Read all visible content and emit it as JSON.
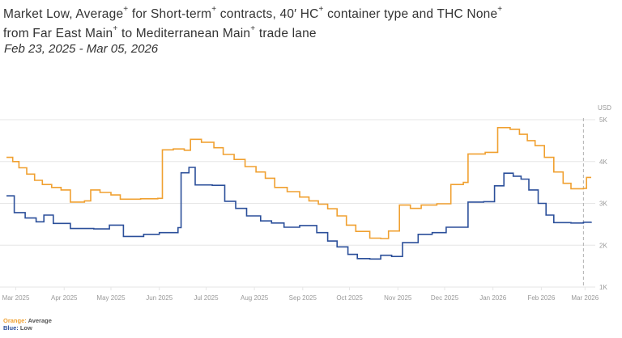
{
  "title": {
    "parts": [
      {
        "text": "Market  Low, Average",
        "sup": "+"
      },
      {
        "text": "  for  Short-term",
        "sup": "+"
      },
      {
        "text": "  contracts,  40′ HC",
        "sup": "+"
      },
      {
        "text": "  container type and THC  None",
        "sup": "+"
      }
    ],
    "line2": [
      {
        "text": "from  Far East Main",
        "sup": "+"
      },
      {
        "text": "  to  Mediterranean Main",
        "sup": "+"
      },
      {
        "text": "  trade lane",
        "sup": ""
      }
    ]
  },
  "date_range": "Feb 23, 2025 - Mar 05, 2026",
  "legend": {
    "orange_key": "Orange:",
    "orange_value": "Average",
    "blue_key": "Blue:",
    "blue_value": "Low"
  },
  "colors": {
    "average": "#f0a030",
    "low": "#2b4f9a",
    "grid": "#e6e6e6",
    "axis_text": "#999999"
  },
  "chart_data": {
    "type": "line",
    "unit_label": "USD",
    "y_ticks": [
      {
        "value": 1000,
        "label": "1K"
      },
      {
        "value": 2000,
        "label": "2K"
      },
      {
        "value": 3000,
        "label": "3K"
      },
      {
        "value": 4000,
        "label": "4K"
      },
      {
        "value": 5000,
        "label": "5K"
      }
    ],
    "ylim": [
      1000,
      5000
    ],
    "x_range": [
      "2025-02-23",
      "2026-03-05"
    ],
    "x_ticks": [
      {
        "date": "2025-03-01",
        "label": "Mar 2025"
      },
      {
        "date": "2025-04-01",
        "label": "Apr 2025"
      },
      {
        "date": "2025-05-01",
        "label": "May 2025"
      },
      {
        "date": "2025-06-01",
        "label": "Jun 2025"
      },
      {
        "date": "2025-07-01",
        "label": "Jul 2025"
      },
      {
        "date": "2025-08-01",
        "label": "Aug 2025"
      },
      {
        "date": "2025-09-01",
        "label": "Sep 2025"
      },
      {
        "date": "2025-10-01",
        "label": "Oct 2025"
      },
      {
        "date": "2025-11-01",
        "label": "Nov 2025"
      },
      {
        "date": "2025-12-01",
        "label": "Dec 2025"
      },
      {
        "date": "2026-01-01",
        "label": "Jan 2026"
      },
      {
        "date": "2026-02-01",
        "label": "Feb 2026"
      },
      {
        "date": "2026-03-01",
        "label": "Mar 2026"
      }
    ],
    "marker_date": "2026-02-28",
    "series": [
      {
        "name": "Average",
        "color_key": "average",
        "points": [
          [
            "2025-02-23",
            4100
          ],
          [
            "2025-02-27",
            4000
          ],
          [
            "2025-03-03",
            3850
          ],
          [
            "2025-03-08",
            3700
          ],
          [
            "2025-03-13",
            3550
          ],
          [
            "2025-03-18",
            3450
          ],
          [
            "2025-03-24",
            3380
          ],
          [
            "2025-03-30",
            3320
          ],
          [
            "2025-04-05",
            3030
          ],
          [
            "2025-04-14",
            3060
          ],
          [
            "2025-04-18",
            3320
          ],
          [
            "2025-04-24",
            3260
          ],
          [
            "2025-05-01",
            3200
          ],
          [
            "2025-05-07",
            3100
          ],
          [
            "2025-05-20",
            3110
          ],
          [
            "2025-05-31",
            3120
          ],
          [
            "2025-06-03",
            4280
          ],
          [
            "2025-06-10",
            4300
          ],
          [
            "2025-06-17",
            4270
          ],
          [
            "2025-06-21",
            4530
          ],
          [
            "2025-06-28",
            4460
          ],
          [
            "2025-07-06",
            4330
          ],
          [
            "2025-07-12",
            4170
          ],
          [
            "2025-07-19",
            4050
          ],
          [
            "2025-07-26",
            3880
          ],
          [
            "2025-08-02",
            3750
          ],
          [
            "2025-08-08",
            3600
          ],
          [
            "2025-08-14",
            3380
          ],
          [
            "2025-08-22",
            3280
          ],
          [
            "2025-08-30",
            3150
          ],
          [
            "2025-09-05",
            3060
          ],
          [
            "2025-09-11",
            2980
          ],
          [
            "2025-09-17",
            2870
          ],
          [
            "2025-09-23",
            2700
          ],
          [
            "2025-09-29",
            2480
          ],
          [
            "2025-10-05",
            2330
          ],
          [
            "2025-10-14",
            2170
          ],
          [
            "2025-10-21",
            2160
          ],
          [
            "2025-10-26",
            2340
          ],
          [
            "2025-11-02",
            2960
          ],
          [
            "2025-11-09",
            2880
          ],
          [
            "2025-11-16",
            2960
          ],
          [
            "2025-11-26",
            2990
          ],
          [
            "2025-12-05",
            3450
          ],
          [
            "2025-12-13",
            3500
          ],
          [
            "2025-12-16",
            4180
          ],
          [
            "2025-12-27",
            4220
          ],
          [
            "2026-01-04",
            4810
          ],
          [
            "2026-01-12",
            4770
          ],
          [
            "2026-01-18",
            4650
          ],
          [
            "2026-01-23",
            4500
          ],
          [
            "2026-01-28",
            4380
          ],
          [
            "2026-02-03",
            4100
          ],
          [
            "2026-02-09",
            3750
          ],
          [
            "2026-02-15",
            3480
          ],
          [
            "2026-02-20",
            3350
          ],
          [
            "2026-02-28",
            3360
          ],
          [
            "2026-03-02",
            3620
          ],
          [
            "2026-03-05",
            3620
          ]
        ]
      },
      {
        "name": "Low",
        "color_key": "low",
        "points": [
          [
            "2025-02-23",
            3180
          ],
          [
            "2025-02-28",
            2780
          ],
          [
            "2025-03-07",
            2650
          ],
          [
            "2025-03-14",
            2560
          ],
          [
            "2025-03-19",
            2720
          ],
          [
            "2025-03-25",
            2520
          ],
          [
            "2025-04-05",
            2400
          ],
          [
            "2025-04-20",
            2390
          ],
          [
            "2025-04-30",
            2480
          ],
          [
            "2025-05-09",
            2210
          ],
          [
            "2025-05-22",
            2260
          ],
          [
            "2025-06-01",
            2300
          ],
          [
            "2025-06-13",
            2420
          ],
          [
            "2025-06-15",
            3730
          ],
          [
            "2025-06-20",
            3860
          ],
          [
            "2025-06-24",
            3440
          ],
          [
            "2025-07-05",
            3430
          ],
          [
            "2025-07-13",
            3050
          ],
          [
            "2025-07-20",
            2880
          ],
          [
            "2025-07-27",
            2700
          ],
          [
            "2025-08-05",
            2580
          ],
          [
            "2025-08-12",
            2530
          ],
          [
            "2025-08-20",
            2430
          ],
          [
            "2025-08-30",
            2470
          ],
          [
            "2025-09-10",
            2300
          ],
          [
            "2025-09-17",
            2100
          ],
          [
            "2025-09-23",
            1960
          ],
          [
            "2025-09-30",
            1780
          ],
          [
            "2025-10-06",
            1680
          ],
          [
            "2025-10-14",
            1670
          ],
          [
            "2025-10-21",
            1760
          ],
          [
            "2025-10-28",
            1730
          ],
          [
            "2025-11-04",
            2060
          ],
          [
            "2025-11-14",
            2260
          ],
          [
            "2025-11-23",
            2300
          ],
          [
            "2025-12-02",
            2430
          ],
          [
            "2025-12-16",
            3030
          ],
          [
            "2025-12-26",
            3040
          ],
          [
            "2026-01-02",
            3420
          ],
          [
            "2026-01-08",
            3720
          ],
          [
            "2026-01-14",
            3650
          ],
          [
            "2026-01-19",
            3580
          ],
          [
            "2026-01-24",
            3320
          ],
          [
            "2026-01-30",
            3000
          ],
          [
            "2026-02-04",
            2720
          ],
          [
            "2026-02-09",
            2540
          ],
          [
            "2026-02-20",
            2530
          ],
          [
            "2026-02-28",
            2550
          ],
          [
            "2026-03-05",
            2560
          ]
        ]
      }
    ]
  }
}
